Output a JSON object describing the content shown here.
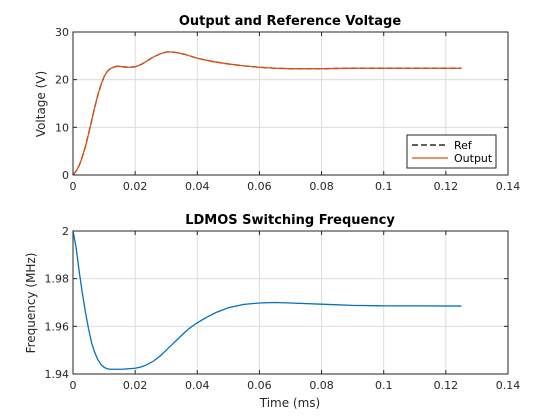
{
  "chart_data": [
    {
      "type": "line",
      "title": "Output and Reference Voltage",
      "xlabel": "",
      "ylabel": "Voltage (V)",
      "xlim": [
        0,
        0.14
      ],
      "ylim": [
        0,
        30
      ],
      "xticks": [
        0,
        0.02,
        0.04,
        0.06,
        0.08,
        0.1,
        0.12,
        0.14
      ],
      "yticks": [
        0,
        10,
        20,
        30
      ],
      "grid": true,
      "legend": "bottom-right",
      "series": [
        {
          "name": "Ref",
          "color": "#000000",
          "dash": "dashed",
          "x": [
            0,
            0.001,
            0.002,
            0.003,
            0.004,
            0.005,
            0.006,
            0.007,
            0.008,
            0.009,
            0.01,
            0.011,
            0.012,
            0.013,
            0.014,
            0.015,
            0.016,
            0.018,
            0.02,
            0.022,
            0.024,
            0.026,
            0.028,
            0.03,
            0.032,
            0.034,
            0.036,
            0.038,
            0.04,
            0.045,
            0.05,
            0.055,
            0.06,
            0.065,
            0.07,
            0.075,
            0.08,
            0.09,
            0.1,
            0.11,
            0.125
          ],
          "values": [
            0,
            0.8,
            2.0,
            3.8,
            6.0,
            8.6,
            11.4,
            14.2,
            16.8,
            18.9,
            20.6,
            21.7,
            22.3,
            22.6,
            22.8,
            22.8,
            22.7,
            22.6,
            22.7,
            23.2,
            24.0,
            24.8,
            25.4,
            25.8,
            25.8,
            25.6,
            25.3,
            24.9,
            24.5,
            23.8,
            23.3,
            22.9,
            22.6,
            22.4,
            22.3,
            22.3,
            22.3,
            22.4,
            22.4,
            22.4,
            22.4
          ]
        },
        {
          "name": "Output",
          "color": "#d95319",
          "dash": "solid",
          "x": [
            0,
            0.001,
            0.002,
            0.003,
            0.004,
            0.005,
            0.006,
            0.007,
            0.008,
            0.009,
            0.01,
            0.011,
            0.012,
            0.013,
            0.014,
            0.015,
            0.016,
            0.018,
            0.02,
            0.022,
            0.024,
            0.026,
            0.028,
            0.03,
            0.032,
            0.034,
            0.036,
            0.038,
            0.04,
            0.045,
            0.05,
            0.055,
            0.06,
            0.065,
            0.07,
            0.075,
            0.08,
            0.09,
            0.1,
            0.11,
            0.125
          ],
          "values": [
            0,
            0.8,
            2.0,
            3.8,
            6.0,
            8.6,
            11.4,
            14.2,
            16.8,
            18.9,
            20.6,
            21.7,
            22.3,
            22.6,
            22.8,
            22.8,
            22.7,
            22.6,
            22.7,
            23.2,
            24.0,
            24.8,
            25.4,
            25.8,
            25.8,
            25.6,
            25.3,
            24.9,
            24.5,
            23.8,
            23.3,
            22.9,
            22.6,
            22.4,
            22.3,
            22.3,
            22.3,
            22.4,
            22.4,
            22.4,
            22.4
          ]
        }
      ]
    },
    {
      "type": "line",
      "title": "LDMOS Switching Frequency",
      "xlabel": "Time (ms)",
      "ylabel": "Frequency (MHz)",
      "xlim": [
        0,
        0.14
      ],
      "ylim": [
        1.94,
        2.0
      ],
      "xticks": [
        0,
        0.02,
        0.04,
        0.06,
        0.08,
        0.1,
        0.12,
        0.14
      ],
      "yticks": [
        1.94,
        1.96,
        1.98,
        2
      ],
      "grid": true,
      "series": [
        {
          "color": "#0072bd",
          "dash": "solid",
          "x": [
            0,
            0.001,
            0.002,
            0.003,
            0.004,
            0.005,
            0.006,
            0.007,
            0.008,
            0.009,
            0.01,
            0.011,
            0.012,
            0.014,
            0.016,
            0.018,
            0.02,
            0.022,
            0.024,
            0.026,
            0.028,
            0.03,
            0.032,
            0.034,
            0.036,
            0.038,
            0.04,
            0.043,
            0.046,
            0.05,
            0.055,
            0.06,
            0.065,
            0.07,
            0.08,
            0.09,
            0.1,
            0.11,
            0.125
          ],
          "values": [
            2.0,
            1.993,
            1.983,
            1.974,
            1.966,
            1.959,
            1.953,
            1.949,
            1.946,
            1.944,
            1.9428,
            1.9422,
            1.942,
            1.942,
            1.942,
            1.9422,
            1.9424,
            1.943,
            1.944,
            1.9455,
            1.9475,
            1.95,
            1.9525,
            1.955,
            1.9575,
            1.9597,
            1.9615,
            1.9638,
            1.9658,
            1.9678,
            1.9692,
            1.9698,
            1.97,
            1.9698,
            1.9693,
            1.9688,
            1.9686,
            1.9686,
            1.9685
          ]
        }
      ]
    }
  ]
}
